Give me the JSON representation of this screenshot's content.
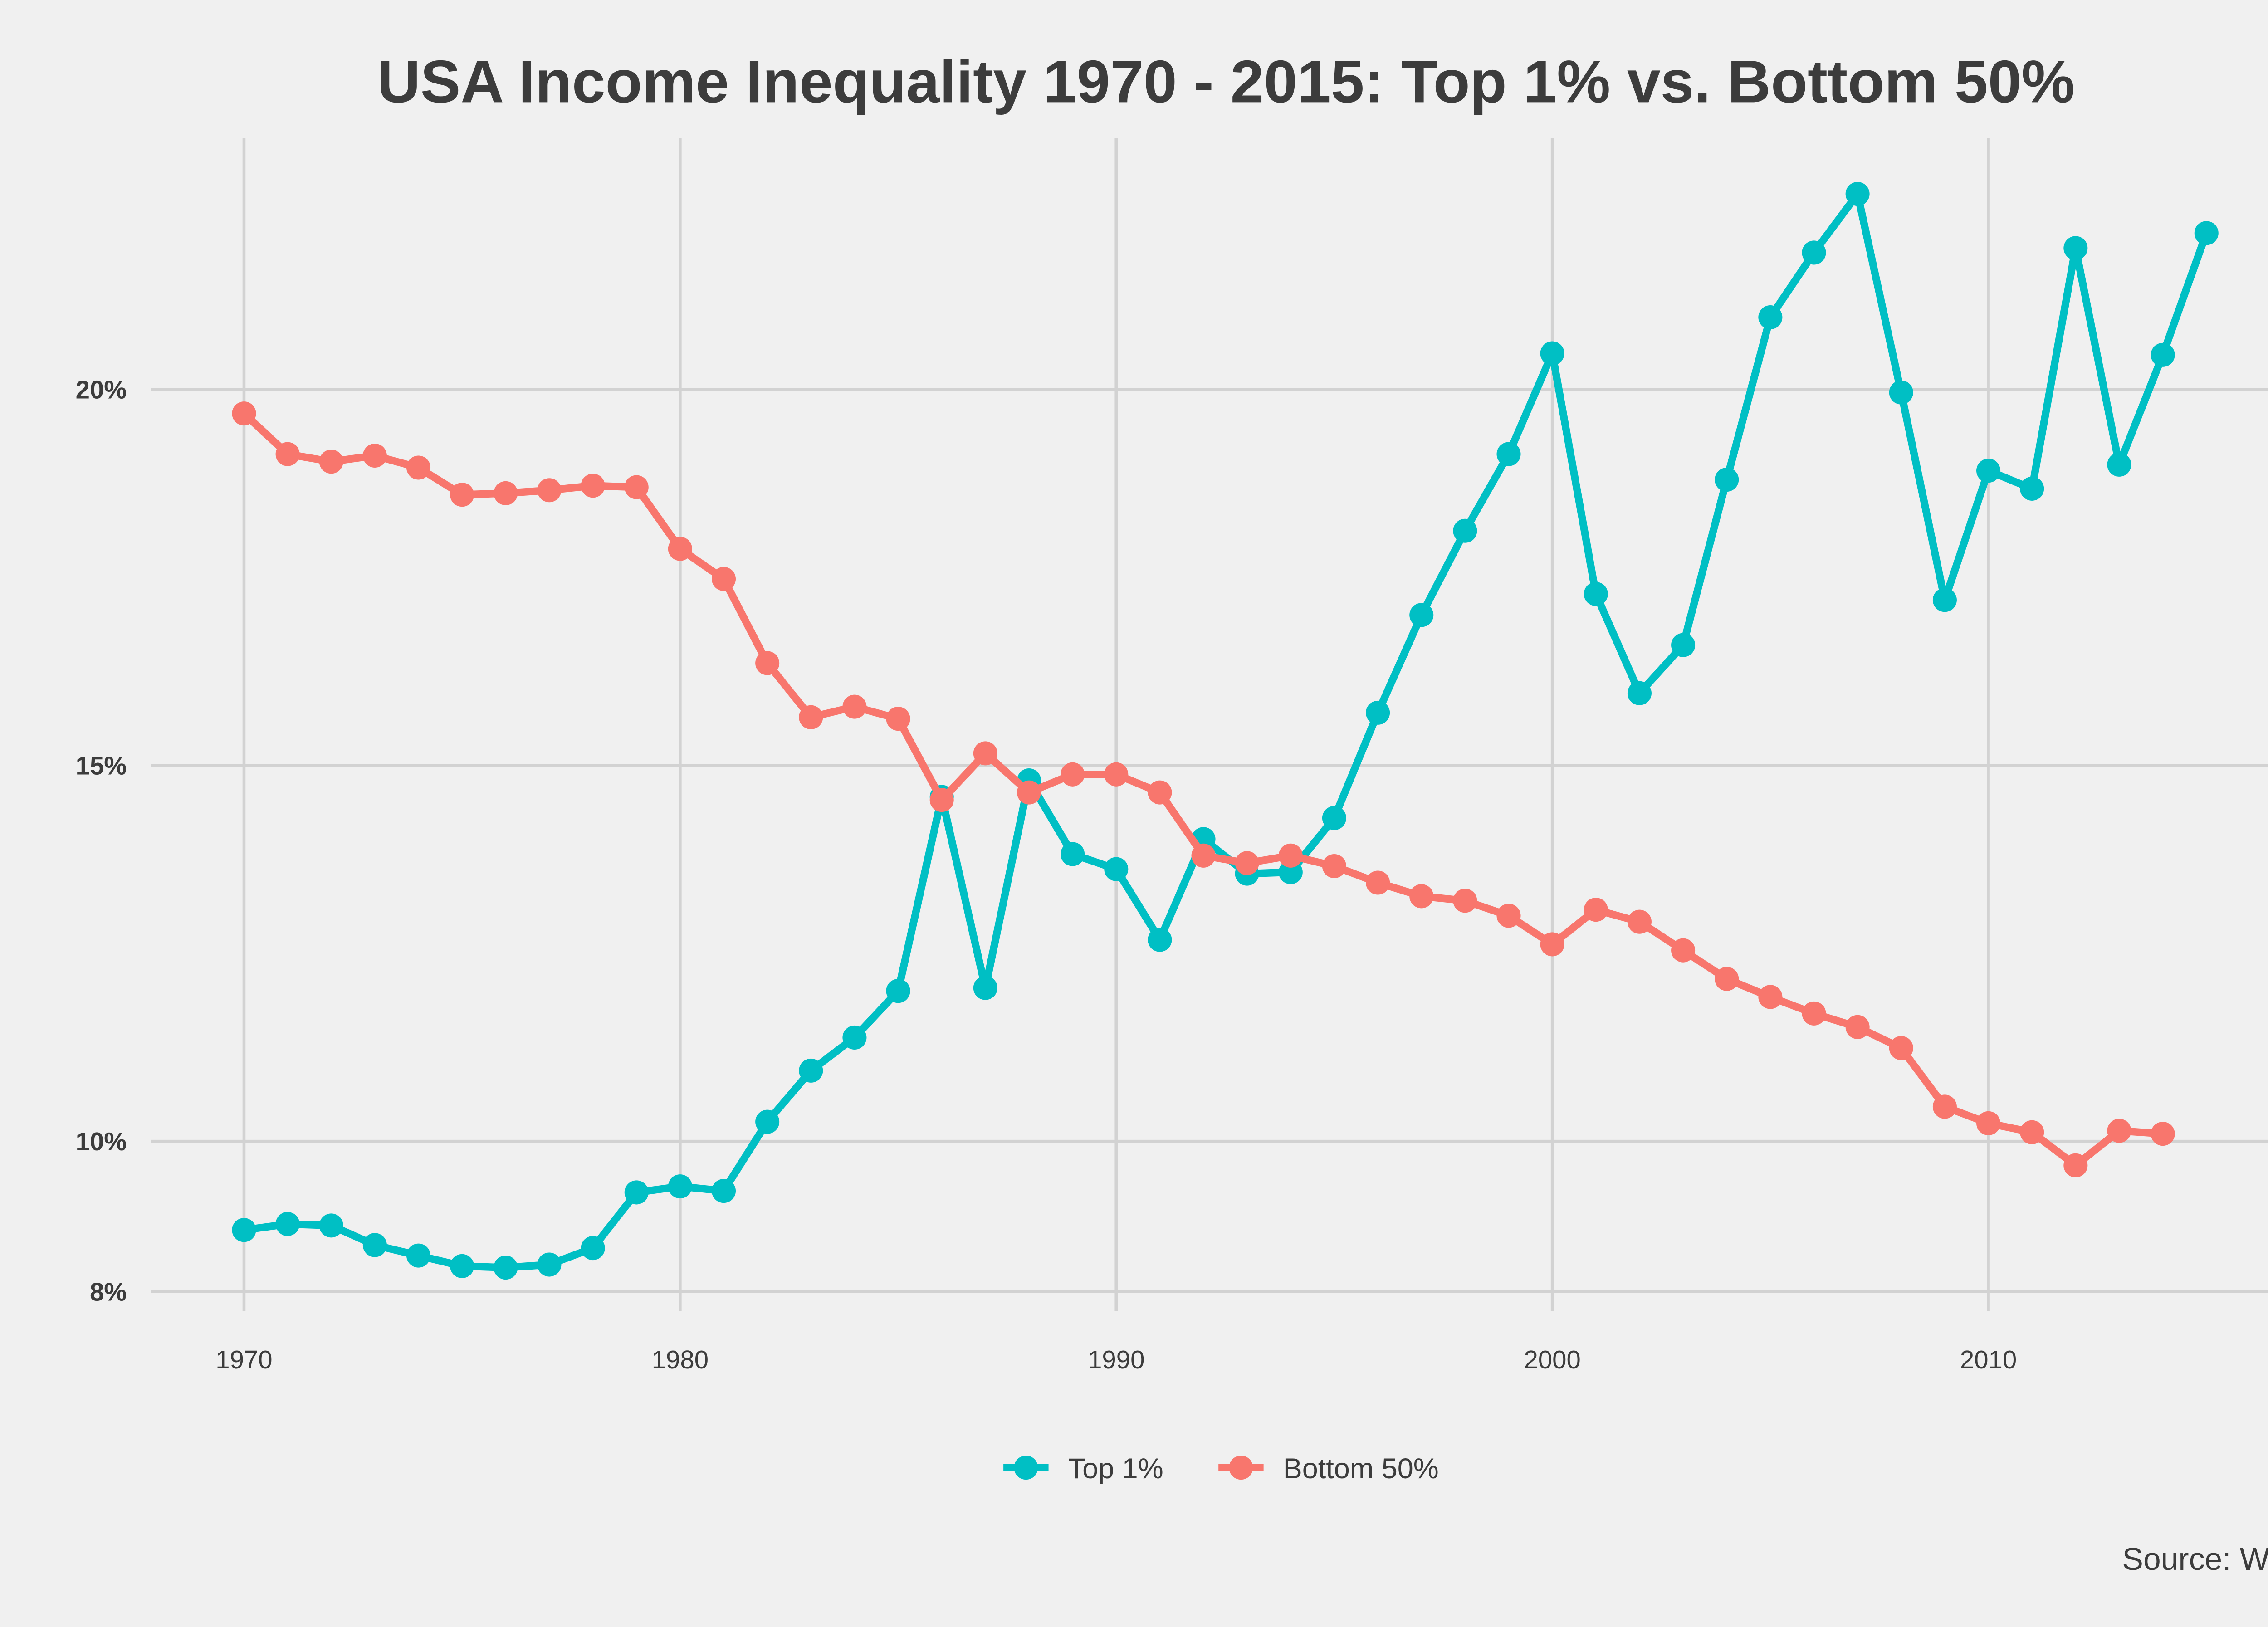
{
  "chart_data": {
    "type": "line",
    "title": "USA Income Inequality 1970 - 2015: Top 1% vs. Bottom 50%",
    "xlabel": "",
    "ylabel": "",
    "source": "Source: WID",
    "xlim": [
      1968,
      2017
    ],
    "ylim": [
      7.5,
      23.2
    ],
    "x_ticks": [
      1970,
      1980,
      1990,
      2000,
      2010
    ],
    "x_tick_labels": [
      "1970",
      "1980",
      "1990",
      "2000",
      "2010"
    ],
    "y_ticks": [
      8,
      10,
      15,
      20
    ],
    "y_tick_labels": [
      "8%",
      "10%",
      "15%",
      "20%"
    ],
    "grid": true,
    "legend_position": "bottom",
    "series": [
      {
        "name": "Top 1%",
        "color": "#00BFC4",
        "x": [
          1970,
          1971,
          1972,
          1973,
          1974,
          1975,
          1976,
          1977,
          1978,
          1979,
          1980,
          1981,
          1982,
          1983,
          1984,
          1985,
          1986,
          1987,
          1988,
          1989,
          1990,
          1991,
          1992,
          1993,
          1994,
          1995,
          1996,
          1997,
          1998,
          1999,
          2000,
          2001,
          2002,
          2003,
          2004,
          2005,
          2006,
          2007,
          2008,
          2009,
          2010,
          2011,
          2012,
          2013,
          2014,
          2015
        ],
        "values": [
          8.82,
          8.9,
          8.88,
          8.62,
          8.48,
          8.34,
          8.32,
          8.36,
          8.58,
          9.32,
          9.4,
          9.34,
          10.26,
          10.94,
          11.38,
          12.0,
          14.58,
          12.04,
          14.8,
          13.82,
          13.62,
          12.68,
          14.02,
          13.56,
          13.58,
          14.3,
          15.7,
          17.0,
          18.12,
          19.14,
          20.48,
          17.28,
          15.96,
          16.6,
          18.8,
          20.96,
          21.82,
          22.6,
          19.96,
          17.2,
          18.92,
          18.68,
          21.88,
          19.0,
          20.46,
          22.08
        ]
      },
      {
        "name": "Bottom 50%",
        "color": "#F8766D",
        "x": [
          1970,
          1971,
          1972,
          1973,
          1974,
          1975,
          1976,
          1977,
          1978,
          1979,
          1980,
          1981,
          1982,
          1983,
          1984,
          1985,
          1986,
          1987,
          1988,
          1989,
          1990,
          1991,
          1992,
          1993,
          1994,
          1995,
          1996,
          1997,
          1998,
          1999,
          2000,
          2001,
          2002,
          2003,
          2004,
          2005,
          2006,
          2007,
          2008,
          2009,
          2010,
          2011,
          2012,
          2013,
          2014
        ],
        "values": [
          19.68,
          19.14,
          19.04,
          19.12,
          18.96,
          18.6,
          18.62,
          18.66,
          18.72,
          18.7,
          17.88,
          17.48,
          16.36,
          15.64,
          15.78,
          15.62,
          14.54,
          15.16,
          14.64,
          14.88,
          14.88,
          14.64,
          13.8,
          13.7,
          13.8,
          13.66,
          13.44,
          13.26,
          13.2,
          13.0,
          12.62,
          13.08,
          12.92,
          12.54,
          12.16,
          11.92,
          11.7,
          11.52,
          11.24,
          10.46,
          10.24,
          10.12,
          9.68,
          10.14,
          10.1
        ]
      }
    ]
  }
}
